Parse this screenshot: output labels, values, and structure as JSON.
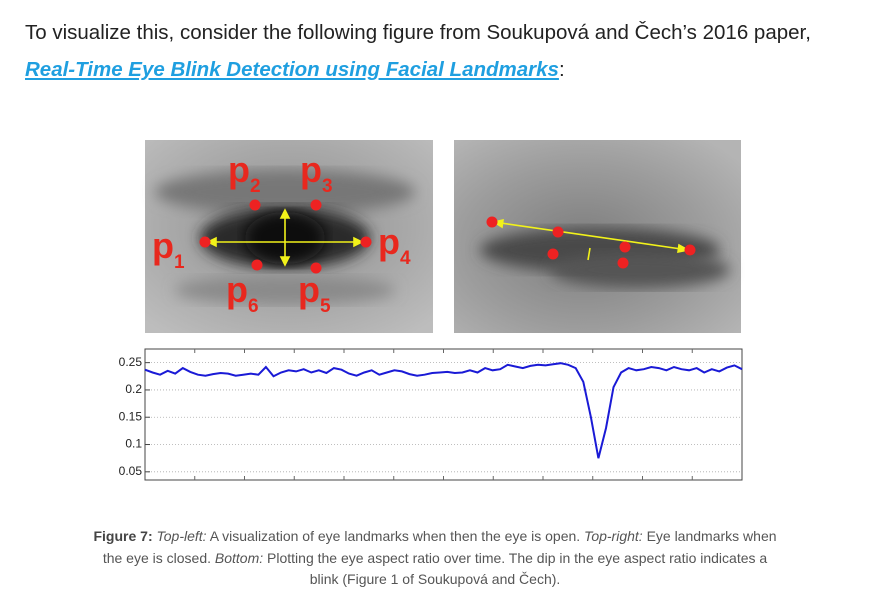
{
  "paragraph": {
    "before": "To visualize this, consider the following figure from Soukupová and Čech’s 2016 paper,",
    "link": "Real-Time Eye Blink Detection using Facial Landmarks",
    "after": ":"
  },
  "figure": {
    "landmarks": [
      {
        "main": "p",
        "sub": "1"
      },
      {
        "main": "p",
        "sub": "2"
      },
      {
        "main": "p",
        "sub": "3"
      },
      {
        "main": "p",
        "sub": "4"
      },
      {
        "main": "p",
        "sub": "5"
      },
      {
        "main": "p",
        "sub": "6"
      }
    ],
    "chart": {
      "type": "line",
      "color": "#1a1ad6",
      "grid": true,
      "ylim": [
        0.035,
        0.275
      ],
      "yticks": [
        0.25,
        0.2,
        0.15,
        0.1,
        0.05
      ],
      "values": [
        0.237,
        0.232,
        0.228,
        0.235,
        0.23,
        0.24,
        0.233,
        0.228,
        0.226,
        0.229,
        0.231,
        0.23,
        0.226,
        0.228,
        0.23,
        0.228,
        0.242,
        0.225,
        0.232,
        0.236,
        0.234,
        0.238,
        0.232,
        0.236,
        0.231,
        0.24,
        0.237,
        0.23,
        0.226,
        0.232,
        0.236,
        0.228,
        0.232,
        0.236,
        0.234,
        0.229,
        0.226,
        0.228,
        0.231,
        0.232,
        0.233,
        0.231,
        0.232,
        0.236,
        0.232,
        0.24,
        0.236,
        0.238,
        0.246,
        0.243,
        0.24,
        0.244,
        0.246,
        0.245,
        0.247,
        0.249,
        0.246,
        0.24,
        0.215,
        0.15,
        0.075,
        0.13,
        0.205,
        0.232,
        0.24,
        0.236,
        0.238,
        0.242,
        0.24,
        0.236,
        0.242,
        0.238,
        0.236,
        0.24,
        0.232,
        0.238,
        0.234,
        0.241,
        0.245,
        0.238
      ]
    }
  },
  "caption": [
    "Figure 7:",
    "Top-left:",
    "A visualization of eye landmarks when then the eye is open.",
    "Top-right:",
    "Eye landmarks when the eye is closed.",
    "Bottom:",
    "Plotting the eye aspect ratio over time. The dip in the eye aspect ratio indicates a blink (Figure 1 of Soukupová and Čech)."
  ]
}
